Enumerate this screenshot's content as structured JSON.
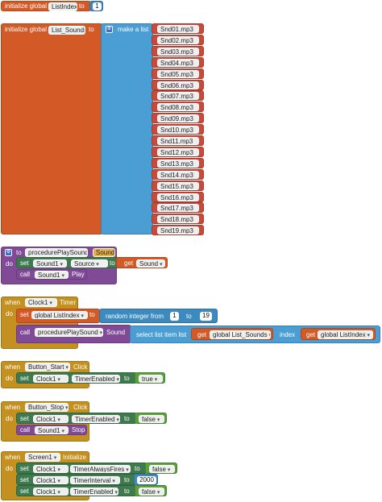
{
  "blocks": {
    "init_list_index": {
      "initialize": "initialize global",
      "var": "ListIndex",
      "to": "to",
      "value": "1"
    },
    "init_list_sounds": {
      "initialize": "initialize global",
      "var": "List_Sounds",
      "to": "to",
      "make_a_list": "make a list",
      "items": [
        "Snd01.mp3",
        "Snd02.mp3",
        "Snd03.mp3",
        "Snd04.mp3",
        "Snd05.mp3",
        "Snd06.mp3",
        "Snd07.mp3",
        "Snd08.mp3",
        "Snd09.mp3",
        "Snd10.mp3",
        "Snd11.mp3",
        "Snd12.mp3",
        "Snd13.mp3",
        "Snd14.mp3",
        "Snd15.mp3",
        "Snd16.mp3",
        "Snd17.mp3",
        "Snd18.mp3",
        "Snd19.mp3"
      ]
    },
    "procedure": {
      "to": "to",
      "name": "procedurePlaySound",
      "param": "Sound",
      "do": "do",
      "set": "set",
      "component": "Sound1",
      "property": "Source",
      "to2": "to",
      "get": "get",
      "get_var": "Sound",
      "call": "call",
      "call_component": "Sound1",
      "call_method": "Play"
    },
    "clock_timer": {
      "when": "when",
      "component": "Clock1",
      "event": "Timer",
      "do": "do",
      "set": "set",
      "var": "global ListIndex",
      "to": "to",
      "random": "random integer from",
      "from": "1",
      "to2": "to",
      "to_value": "19",
      "call": "call",
      "proc": "procedurePlaySound",
      "arg": "Sound",
      "select": "select list item  list",
      "get1": "get",
      "list_var": "global List_Sounds",
      "index": "index",
      "get2": "get",
      "index_var": "global ListIndex"
    },
    "button_start": {
      "when": "when",
      "component": "Button_Start",
      "event": "Click",
      "do": "do",
      "set": "set",
      "set_component": "Clock1",
      "property": "TimerEnabled",
      "to": "to",
      "value": "true"
    },
    "button_stop": {
      "when": "when",
      "component": "Button_Stop",
      "event": "Click",
      "do": "do",
      "set": "set",
      "set_component": "Clock1",
      "property": "TimerEnabled",
      "to": "to",
      "value": "false",
      "call": "call",
      "call_component": "Sound1",
      "call_method": "Stop"
    },
    "screen_init": {
      "when": "when",
      "component": "Screen1",
      "event": "Initialize",
      "do": "do",
      "rows": [
        {
          "set": "set",
          "component": "Clock1",
          "property": "TimerAlwaysFires",
          "to": "to",
          "value": "false"
        },
        {
          "set": "set",
          "component": "Clock1",
          "property": "TimerInterval",
          "to": "to",
          "value": "2000"
        },
        {
          "set": "set",
          "component": "Clock1",
          "property": "TimerEnabled",
          "to": "to",
          "value": "false"
        }
      ]
    }
  },
  "colors": {
    "variable_block": "#d35a27",
    "list_block": "#4a9ed3",
    "event_block": "#c4901f",
    "procedure_block": "#804a97",
    "component_setter": "#3e7a4e",
    "text_block": "#c84a3a",
    "logic_block": "#5aa03c",
    "math_block": "#3c8abf"
  },
  "icons": {
    "mutator": "gear-icon"
  }
}
